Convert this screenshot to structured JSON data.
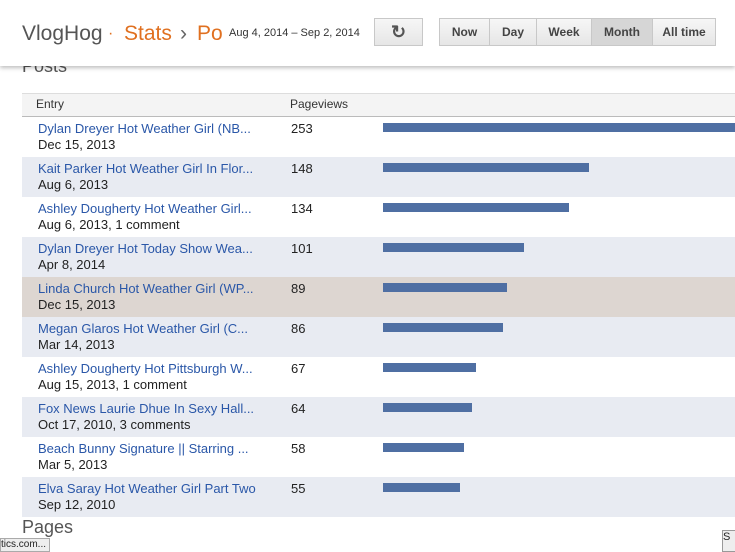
{
  "header": {
    "brand": "VlogHog",
    "separator": "·",
    "section": "Stats",
    "chevron": "›",
    "subsection": "Po",
    "date_range": "Aug 4, 2014 – Sep 2, 2014",
    "refresh": "↻",
    "buttons": [
      "Now",
      "Day",
      "Week",
      "Month",
      "All time"
    ],
    "selected_button": 3
  },
  "posts": {
    "title": "Posts",
    "columns": [
      "Entry",
      "Pageviews"
    ],
    "hovered_row": 4,
    "rows": [
      {
        "title": "Dylan Dreyer Hot Weather Girl (NB...",
        "date": "Dec 15, 2013",
        "pageviews": 253
      },
      {
        "title": "Kait Parker Hot Weather Girl In Flor...",
        "date": "Aug 6, 2013",
        "pageviews": 148
      },
      {
        "title": "Ashley Dougherty Hot Weather Girl...",
        "date": "Aug 6, 2013, 1 comment",
        "pageviews": 134
      },
      {
        "title": "Dylan Dreyer Hot Today Show Wea...",
        "date": "Apr 8, 2014",
        "pageviews": 101
      },
      {
        "title": "Linda Church Hot Weather Girl (WP...",
        "date": "Dec 15, 2013",
        "pageviews": 89
      },
      {
        "title": "Megan Glaros Hot Weather Girl (C...",
        "date": "Mar 14, 2013",
        "pageviews": 86
      },
      {
        "title": "Ashley Dougherty Hot Pittsburgh W...",
        "date": "Aug 15, 2013, 1 comment",
        "pageviews": 67
      },
      {
        "title": "Fox News Laurie Dhue In Sexy Hall...",
        "date": "Oct 17, 2010, 3 comments",
        "pageviews": 64
      },
      {
        "title": "Beach Bunny Signature || Starring ...",
        "date": "Mar 5, 2013",
        "pageviews": 58
      },
      {
        "title": "Elva Saray Hot Weather Girl Part Two",
        "date": "Sep 12, 2010",
        "pageviews": 55
      }
    ]
  },
  "pages_title": "Pages",
  "status_text": "tics.com...",
  "corner_text": "S"
}
